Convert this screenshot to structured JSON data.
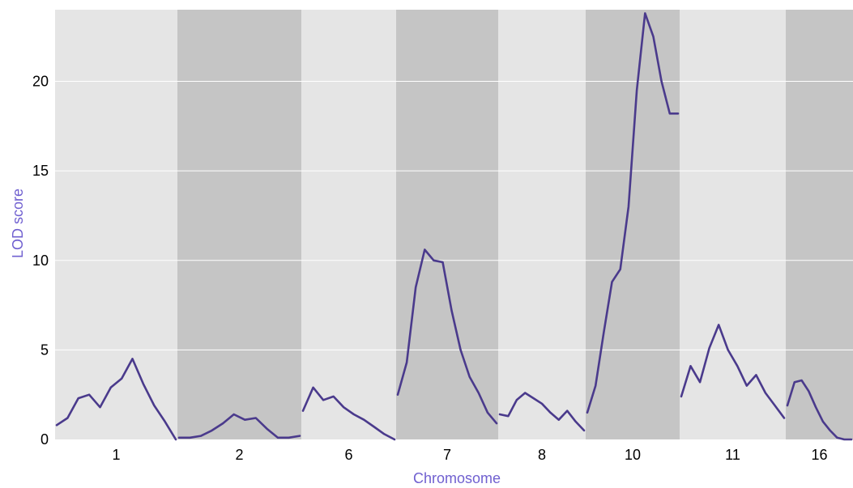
{
  "chart_data": {
    "type": "line",
    "xlabel": "Chromosome",
    "ylabel": "LOD score",
    "ylim": [
      0,
      24
    ],
    "yticks": [
      0,
      5,
      10,
      15,
      20
    ],
    "grid": true,
    "colors": {
      "line": "#4a3a8c",
      "panel_light": "#e5e5e5",
      "panel_dark": "#c5c5c5",
      "gridline": "#ffffff",
      "axis_title": "#7060d0"
    },
    "chromosomes": [
      {
        "name": "1",
        "x": [
          0,
          10,
          20,
          30,
          40,
          50,
          60,
          70,
          80,
          90,
          100,
          110
        ],
        "y": [
          0.8,
          1.2,
          2.3,
          2.5,
          1.8,
          2.9,
          3.4,
          4.5,
          3.1,
          1.9,
          1.0,
          0.0
        ]
      },
      {
        "name": "2",
        "x": [
          0,
          10,
          20,
          30,
          40,
          50,
          60,
          70,
          80,
          90,
          100,
          110
        ],
        "y": [
          0.1,
          0.1,
          0.2,
          0.5,
          0.9,
          1.4,
          1.1,
          1.2,
          0.6,
          0.1,
          0.1,
          0.2
        ]
      },
      {
        "name": "6",
        "x": [
          0,
          10,
          20,
          30,
          40,
          50,
          60,
          70,
          80,
          90
        ],
        "y": [
          1.6,
          2.9,
          2.2,
          2.4,
          1.8,
          1.4,
          1.1,
          0.7,
          0.3,
          0.0
        ]
      },
      {
        "name": "7",
        "x": [
          0,
          10,
          20,
          30,
          40,
          50,
          60,
          70,
          80,
          90,
          100,
          110
        ],
        "y": [
          2.5,
          4.3,
          8.5,
          10.6,
          10.0,
          9.9,
          7.2,
          5.0,
          3.5,
          2.6,
          1.5,
          0.9
        ]
      },
      {
        "name": "8",
        "x": [
          0,
          10,
          20,
          30,
          40,
          50,
          60,
          70,
          80,
          90,
          100
        ],
        "y": [
          1.4,
          1.3,
          2.2,
          2.6,
          2.3,
          2.0,
          1.5,
          1.1,
          1.6,
          1.0,
          0.5
        ]
      },
      {
        "name": "10",
        "x": [
          0,
          10,
          20,
          30,
          40,
          50,
          60,
          70,
          80,
          90,
          100,
          110
        ],
        "y": [
          1.5,
          3.0,
          6.0,
          8.8,
          9.5,
          13.0,
          19.5,
          23.8,
          22.5,
          20.0,
          18.2,
          18.2
        ]
      },
      {
        "name": "11",
        "x": [
          0,
          10,
          20,
          30,
          40,
          50,
          60,
          70,
          80,
          90,
          100,
          110
        ],
        "y": [
          2.4,
          4.1,
          3.2,
          5.1,
          6.4,
          5.0,
          4.1,
          3.0,
          3.6,
          2.6,
          1.9,
          1.2
        ]
      },
      {
        "name": "16",
        "x": [
          0,
          10,
          20,
          30,
          40,
          50,
          60,
          70,
          80,
          90
        ],
        "y": [
          1.9,
          3.2,
          3.3,
          2.7,
          1.8,
          1.0,
          0.5,
          0.1,
          0.0,
          0.0
        ]
      }
    ]
  }
}
